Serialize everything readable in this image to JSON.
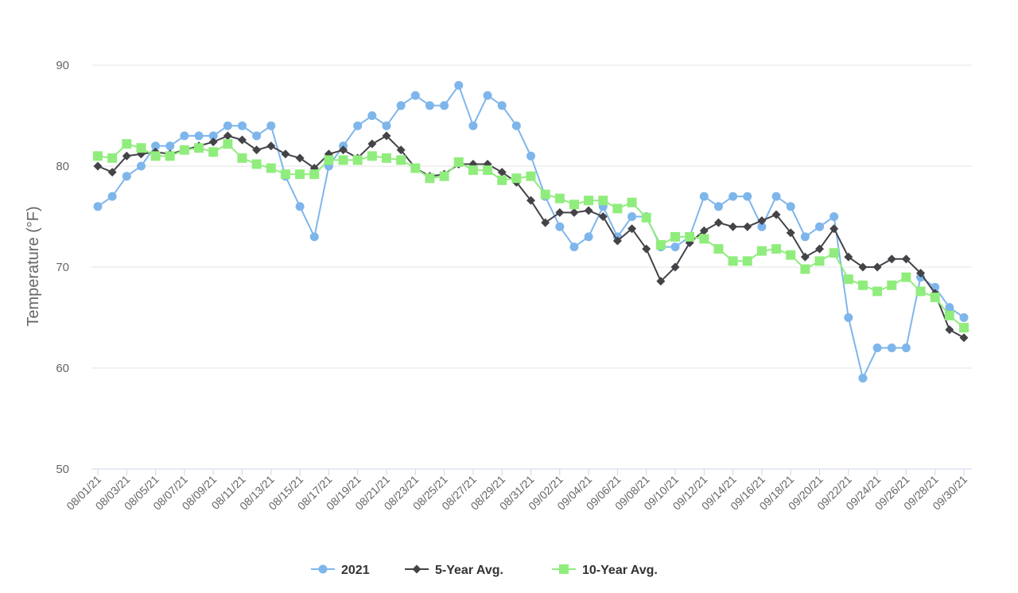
{
  "chart_data": {
    "type": "line",
    "title": "",
    "xlabel": "",
    "ylabel": "Temperature (°F)",
    "ylim": [
      50,
      90
    ],
    "yticks": [
      50,
      60,
      70,
      80,
      90
    ],
    "grid": "horizontal",
    "legend_position": "bottom",
    "x": [
      "08/01/21",
      "08/02/21",
      "08/03/21",
      "08/04/21",
      "08/05/21",
      "08/06/21",
      "08/07/21",
      "08/08/21",
      "08/09/21",
      "08/10/21",
      "08/11/21",
      "08/12/21",
      "08/13/21",
      "08/14/21",
      "08/15/21",
      "08/16/21",
      "08/17/21",
      "08/18/21",
      "08/19/21",
      "08/20/21",
      "08/21/21",
      "08/22/21",
      "08/23/21",
      "08/24/21",
      "08/25/21",
      "08/26/21",
      "08/27/21",
      "08/28/21",
      "08/29/21",
      "08/30/21",
      "08/31/21",
      "09/01/21",
      "09/02/21",
      "09/03/21",
      "09/04/21",
      "09/05/21",
      "09/06/21",
      "09/07/21",
      "09/08/21",
      "09/09/21",
      "09/10/21",
      "09/11/21",
      "09/12/21",
      "09/13/21",
      "09/14/21",
      "09/15/21",
      "09/16/21",
      "09/17/21",
      "09/18/21",
      "09/19/21",
      "09/20/21",
      "09/21/21",
      "09/22/21",
      "09/23/21",
      "09/24/21",
      "09/25/21",
      "09/26/21",
      "09/27/21",
      "09/28/21",
      "09/29/21",
      "09/30/21"
    ],
    "x_tick_labels": [
      "08/01/21",
      "08/03/21",
      "08/05/21",
      "08/07/21",
      "08/09/21",
      "08/11/21",
      "08/13/21",
      "08/15/21",
      "08/17/21",
      "08/19/21",
      "08/21/21",
      "08/23/21",
      "08/25/21",
      "08/27/21",
      "08/29/21",
      "08/31/21",
      "09/02/21",
      "09/04/21",
      "09/06/21",
      "09/08/21",
      "09/10/21",
      "09/12/21",
      "09/14/21",
      "09/16/21",
      "09/18/21",
      "09/20/21",
      "09/22/21",
      "09/24/21",
      "09/26/21",
      "09/28/21",
      "09/30/21"
    ],
    "series": [
      {
        "name": "2021",
        "color": "#7eb6ec",
        "marker": "circle",
        "values": [
          76,
          77,
          79,
          80,
          82,
          82,
          83,
          83,
          83,
          84,
          84,
          83,
          84,
          79,
          76,
          73,
          80,
          82,
          84,
          85,
          84,
          86,
          87,
          86,
          86,
          88,
          84,
          87,
          86,
          84,
          81,
          77,
          74,
          72,
          73,
          76,
          73,
          75,
          75,
          72,
          72,
          73,
          77,
          76,
          77,
          77,
          74,
          77,
          76,
          73,
          74,
          75,
          65,
          59,
          62,
          62,
          62,
          69,
          68,
          66,
          65
        ]
      },
      {
        "name": "5-Year Avg.",
        "color": "#434348",
        "marker": "diamond",
        "values": [
          80,
          79.4,
          81,
          81.2,
          81.4,
          81.2,
          81.6,
          82,
          82.4,
          83,
          82.6,
          81.6,
          82,
          81.2,
          80.8,
          79.8,
          81.2,
          81.6,
          80.8,
          82.2,
          83,
          81.6,
          79.8,
          79,
          79.2,
          80.2,
          80.2,
          80.2,
          79.4,
          78.4,
          76.6,
          74.4,
          75.4,
          75.4,
          75.6,
          75,
          72.6,
          73.8,
          71.8,
          68.6,
          70,
          72.4,
          73.6,
          74.4,
          74,
          74,
          74.6,
          75.2,
          73.4,
          71,
          71.8,
          73.8,
          71,
          70,
          70,
          70.8,
          70.8,
          69.4,
          67.4,
          63.8,
          63
        ]
      },
      {
        "name": "10-Year Avg.",
        "color": "#90ed7d",
        "marker": "square",
        "values": [
          81,
          80.8,
          82.2,
          81.8,
          81,
          81,
          81.6,
          81.8,
          81.4,
          82.2,
          80.8,
          80.2,
          79.8,
          79.2,
          79.2,
          79.2,
          80.6,
          80.6,
          80.6,
          81,
          80.8,
          80.6,
          79.8,
          78.8,
          79,
          80.4,
          79.6,
          79.6,
          78.6,
          78.8,
          79,
          77.2,
          76.8,
          76.2,
          76.6,
          76.6,
          75.8,
          76.4,
          74.9,
          72.2,
          73,
          73,
          72.8,
          71.8,
          70.6,
          70.6,
          71.6,
          71.8,
          71.2,
          69.8,
          70.6,
          71.4,
          68.8,
          68.2,
          67.6,
          68.2,
          69,
          67.6,
          67,
          65.2,
          64
        ]
      }
    ]
  }
}
